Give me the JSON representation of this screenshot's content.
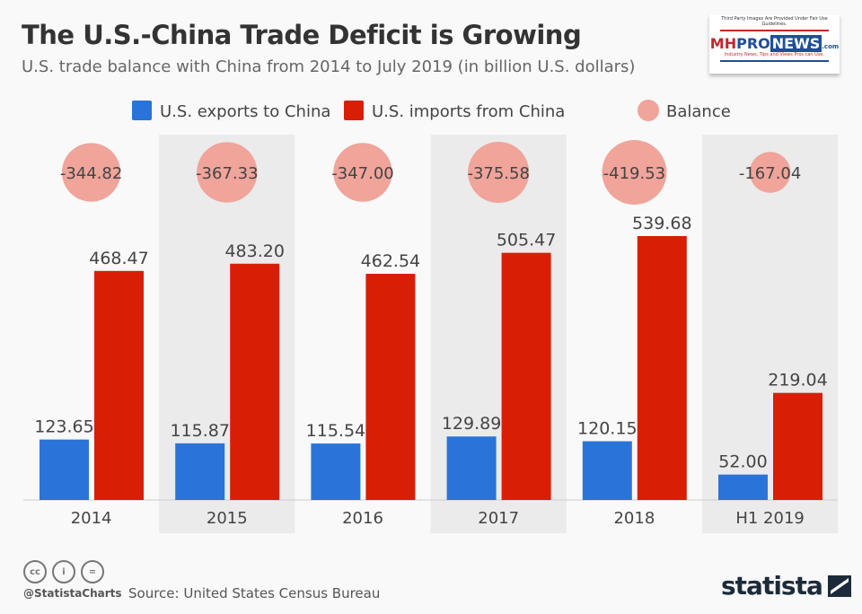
{
  "chart_data": {
    "type": "bar",
    "title": "The U.S.-China Trade Deficit is Growing",
    "subtitle": "U.S. trade balance with China from 2014 to July 2019 (in billion U.S. dollars)",
    "categories": [
      "2014",
      "2015",
      "2016",
      "2017",
      "2018",
      "H1 2019"
    ],
    "series": [
      {
        "name": "U.S. exports to China",
        "color": "#2a74d9",
        "values": [
          123.65,
          115.87,
          115.54,
          129.89,
          120.15,
          52.0
        ],
        "labels": [
          "123.65",
          "115.87",
          "115.54",
          "129.89",
          "120.15",
          "52.00"
        ]
      },
      {
        "name": "U.S. imports from China",
        "color": "#d81e05",
        "values": [
          468.47,
          483.2,
          462.54,
          505.47,
          539.68,
          219.04
        ],
        "labels": [
          "468.47",
          "483.20",
          "462.54",
          "505.47",
          "539.68",
          "219.04"
        ]
      },
      {
        "name": "Balance",
        "color": "#f0a49a",
        "values": [
          -344.82,
          -367.33,
          -347.0,
          -375.58,
          -419.53,
          -167.04
        ],
        "labels": [
          "-344.82",
          "-367.33",
          "-347.00",
          "-375.58",
          "-419.53",
          "-167.04"
        ]
      }
    ],
    "ylim": [
      0,
      560
    ],
    "legend": "top"
  },
  "logo": {
    "fair_use": "Third Party Images Are Provided Under Fair Use Guidelines.",
    "mh": "MH",
    "pro": "PRO",
    "news": "NEWS",
    ".com": ".com",
    "tagline": "Industry News, Tips and Views Pros can Use."
  },
  "footer": {
    "handle": "@StatistaCharts",
    "source": "Source: United States Census Bureau",
    "brand": "statista",
    "cc": "cc",
    "by": "i",
    "nd": "="
  }
}
